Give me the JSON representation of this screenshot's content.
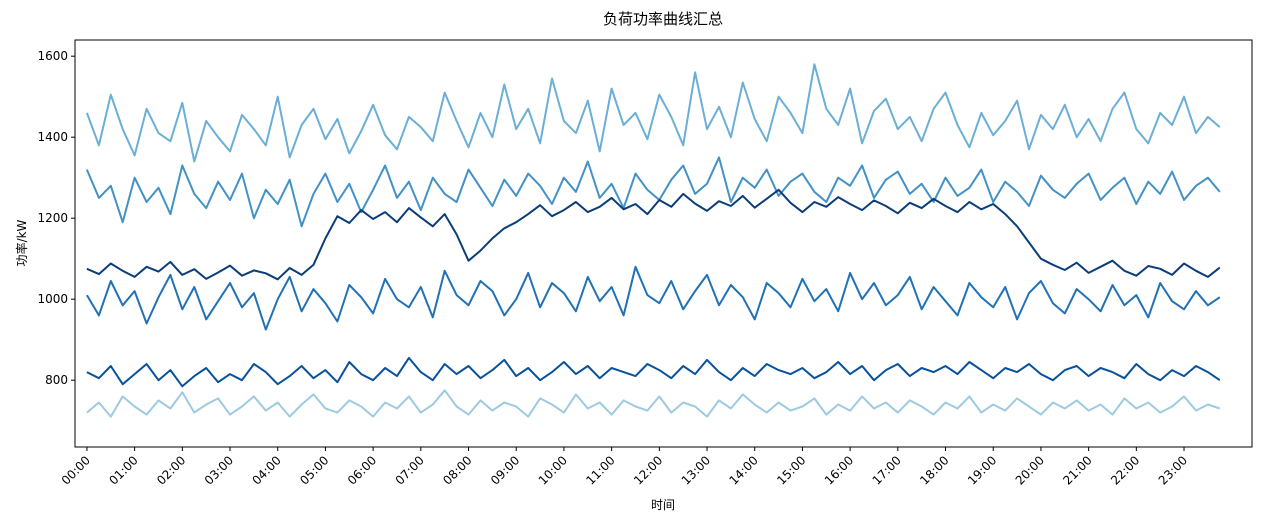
{
  "chart_data": {
    "type": "line",
    "title": "负荷功率曲线汇总",
    "x_label": "时间",
    "y_label": "功率/kW",
    "categories": [
      "00:00",
      null,
      null,
      null,
      "01:00",
      null,
      null,
      null,
      "02:00",
      null,
      null,
      null,
      "03:00",
      null,
      null,
      null,
      "04:00",
      null,
      null,
      null,
      "05:00",
      null,
      null,
      null,
      "06:00",
      null,
      null,
      null,
      "07:00",
      null,
      null,
      null,
      "08:00",
      null,
      null,
      null,
      "09:00",
      null,
      null,
      null,
      "10:00",
      null,
      null,
      null,
      "11:00",
      null,
      null,
      null,
      "12:00",
      null,
      null,
      null,
      "13:00",
      null,
      null,
      null,
      "14:00",
      null,
      null,
      null,
      "15:00",
      null,
      null,
      null,
      "16:00",
      null,
      null,
      null,
      "17:00",
      null,
      null,
      null,
      "18:00",
      null,
      null,
      null,
      "19:00",
      null,
      null,
      null,
      "20:00",
      null,
      null,
      null,
      "21:00",
      null,
      null,
      null,
      "22:00",
      null,
      null,
      null,
      "23:00",
      null,
      null,
      null
    ],
    "ylim": [
      635,
      1640
    ],
    "yticks": [
      800,
      1000,
      1200,
      1400,
      1600
    ],
    "series": [
      {
        "color": "#9ecae1",
        "values": [
          720,
          745,
          710,
          760,
          735,
          715,
          750,
          730,
          770,
          720,
          740,
          755,
          715,
          735,
          760,
          725,
          745,
          710,
          740,
          765,
          730,
          720,
          750,
          735,
          710,
          745,
          730,
          760,
          720,
          740,
          775,
          735,
          715,
          750,
          725,
          745,
          735,
          710,
          755,
          740,
          720,
          765,
          730,
          745,
          715,
          750,
          735,
          725,
          760,
          720,
          745,
          735,
          710,
          750,
          730,
          765,
          740,
          720,
          745,
          725,
          735,
          755,
          715,
          740,
          725,
          760,
          730,
          745,
          720,
          750,
          735,
          715,
          745,
          730,
          760,
          720,
          740,
          725,
          755,
          735,
          715,
          745,
          730,
          750,
          725,
          740,
          715,
          755,
          730,
          745,
          720,
          735,
          760,
          725,
          740,
          730
        ]
      },
      {
        "color": "#6baed6",
        "values": [
          1460,
          1380,
          1505,
          1420,
          1355,
          1470,
          1410,
          1390,
          1485,
          1340,
          1440,
          1400,
          1365,
          1455,
          1420,
          1380,
          1500,
          1350,
          1430,
          1470,
          1395,
          1445,
          1360,
          1415,
          1480,
          1405,
          1370,
          1450,
          1425,
          1390,
          1510,
          1440,
          1375,
          1460,
          1400,
          1530,
          1420,
          1470,
          1385,
          1545,
          1440,
          1410,
          1490,
          1365,
          1520,
          1430,
          1460,
          1395,
          1505,
          1450,
          1380,
          1560,
          1420,
          1475,
          1400,
          1535,
          1445,
          1390,
          1500,
          1460,
          1410,
          1580,
          1470,
          1430,
          1520,
          1385,
          1465,
          1495,
          1420,
          1450,
          1390,
          1470,
          1510,
          1430,
          1375,
          1460,
          1405,
          1440,
          1490,
          1370,
          1455,
          1420,
          1480,
          1400,
          1445,
          1390,
          1470,
          1510,
          1420,
          1385,
          1460,
          1430,
          1500,
          1410,
          1450,
          1425
        ]
      },
      {
        "color": "#4292c6",
        "values": [
          1320,
          1250,
          1280,
          1190,
          1300,
          1240,
          1275,
          1210,
          1330,
          1260,
          1225,
          1290,
          1245,
          1310,
          1200,
          1270,
          1235,
          1295,
          1180,
          1260,
          1310,
          1240,
          1285,
          1215,
          1270,
          1330,
          1250,
          1290,
          1220,
          1300,
          1260,
          1240,
          1320,
          1275,
          1230,
          1295,
          1255,
          1310,
          1280,
          1235,
          1300,
          1265,
          1340,
          1250,
          1285,
          1225,
          1310,
          1270,
          1245,
          1295,
          1330,
          1260,
          1285,
          1350,
          1240,
          1300,
          1275,
          1320,
          1255,
          1290,
          1310,
          1265,
          1240,
          1300,
          1280,
          1330,
          1250,
          1295,
          1315,
          1260,
          1285,
          1240,
          1300,
          1255,
          1275,
          1320,
          1240,
          1290,
          1265,
          1230,
          1305,
          1270,
          1250,
          1285,
          1310,
          1245,
          1275,
          1300,
          1235,
          1290,
          1260,
          1315,
          1245,
          1280,
          1300,
          1265
        ]
      },
      {
        "color": "#2171b5",
        "values": [
          1010,
          960,
          1045,
          985,
          1020,
          940,
          1005,
          1060,
          975,
          1030,
          950,
          995,
          1040,
          980,
          1015,
          925,
          1000,
          1055,
          970,
          1025,
          990,
          945,
          1035,
          1005,
          965,
          1050,
          1000,
          980,
          1030,
          955,
          1070,
          1010,
          985,
          1045,
          1020,
          960,
          1000,
          1065,
          980,
          1040,
          1015,
          970,
          1055,
          995,
          1030,
          960,
          1080,
          1010,
          990,
          1045,
          975,
          1020,
          1060,
          985,
          1035,
          1005,
          950,
          1040,
          1015,
          980,
          1050,
          995,
          1025,
          970,
          1065,
          1000,
          1040,
          985,
          1010,
          1055,
          975,
          1030,
          995,
          960,
          1040,
          1005,
          980,
          1030,
          950,
          1015,
          1045,
          990,
          965,
          1025,
          1000,
          970,
          1035,
          985,
          1010,
          955,
          1040,
          995,
          975,
          1020,
          985,
          1005
        ]
      },
      {
        "color": "#08519c",
        "values": [
          820,
          805,
          835,
          790,
          815,
          840,
          800,
          825,
          785,
          810,
          830,
          795,
          815,
          800,
          840,
          820,
          790,
          810,
          835,
          805,
          825,
          795,
          845,
          815,
          800,
          830,
          810,
          855,
          820,
          800,
          840,
          815,
          835,
          805,
          825,
          850,
          810,
          830,
          800,
          820,
          845,
          815,
          835,
          805,
          830,
          820,
          810,
          840,
          825,
          805,
          835,
          815,
          850,
          820,
          800,
          830,
          810,
          840,
          825,
          815,
          830,
          805,
          820,
          845,
          815,
          835,
          800,
          825,
          840,
          810,
          830,
          820,
          835,
          815,
          845,
          825,
          805,
          830,
          820,
          840,
          815,
          800,
          825,
          835,
          810,
          830,
          820,
          805,
          840,
          815,
          800,
          825,
          810,
          835,
          820,
          800
        ]
      },
      {
        "color": "#0b3d7a",
        "values": [
          1075,
          1062,
          1088,
          1070,
          1055,
          1080,
          1068,
          1092,
          1060,
          1074,
          1050,
          1066,
          1083,
          1058,
          1071,
          1064,
          1049,
          1077,
          1060,
          1085,
          1150,
          1205,
          1188,
          1220,
          1198,
          1215,
          1190,
          1225,
          1202,
          1180,
          1210,
          1160,
          1095,
          1120,
          1150,
          1175,
          1190,
          1210,
          1232,
          1205,
          1220,
          1240,
          1215,
          1228,
          1250,
          1222,
          1235,
          1210,
          1245,
          1228,
          1260,
          1236,
          1218,
          1242,
          1230,
          1255,
          1226,
          1248,
          1270,
          1238,
          1215,
          1240,
          1228,
          1252,
          1235,
          1220,
          1244,
          1230,
          1212,
          1238,
          1225,
          1248,
          1230,
          1215,
          1240,
          1222,
          1235,
          1210,
          1180,
          1140,
          1100,
          1085,
          1072,
          1090,
          1065,
          1080,
          1095,
          1070,
          1058,
          1082,
          1075,
          1060,
          1088,
          1070,
          1055,
          1078
        ]
      }
    ]
  }
}
